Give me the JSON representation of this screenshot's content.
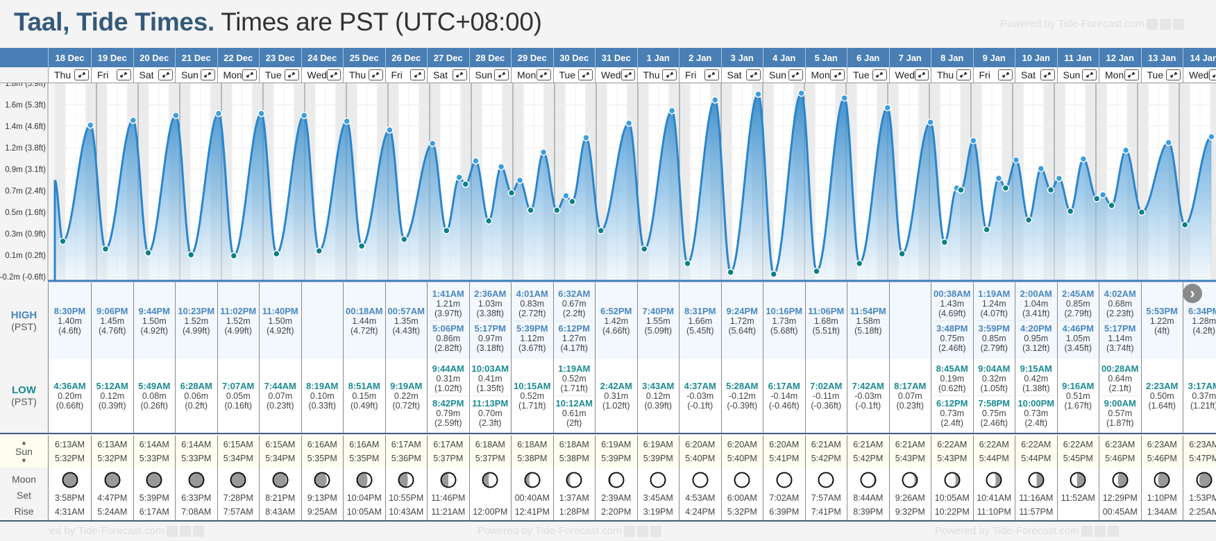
{
  "header": {
    "title_bold": "Taal, Tide Times.",
    "title_tz": "Times are PST (UTC+08:00)"
  },
  "watermark": "Powered by Tide-Forecast.com",
  "labels": {
    "high": "HIGH",
    "low": "LOW",
    "pst": "(PST)",
    "sun": "Sun",
    "moon": "Moon",
    "set": "Set",
    "rise": "Rise",
    "sun_up": "▲",
    "sun_down": "▼",
    "next": "›"
  },
  "colors": {
    "header": "#4a7fb5",
    "high": "#4a86c0",
    "low": "#1a8a93",
    "curve": "#2a85cc"
  },
  "chart_data": {
    "type": "area",
    "ylabel": "Tide height",
    "y_ticks": [
      1.833,
      1.611,
      1.389,
      1.167,
      0.944,
      0.722,
      0.5,
      0.278,
      0.056,
      -0.167
    ],
    "y_tick_labels": [
      "1.8m (5.9ft)",
      "1.6m (5.3ft)",
      "1.4m (4.6ft)",
      "1.2m (3.8ft)",
      "0.9m (3.1ft)",
      "0.7m (2.4ft)",
      "0.5m (1.6ft)",
      "0.3m (0.9ft)",
      "0.1m (0.2ft)",
      "-0.2m (-0.6ft)"
    ],
    "ylim": [
      -0.167,
      1.833
    ],
    "start_level_m": 0.83,
    "grid": true,
    "series_source": "days[].high / days[].low"
  },
  "days": [
    {
      "date": "18 Dec",
      "dow": "Thu",
      "high": [
        {
          "t": "8:30PM",
          "m": "1.40m",
          "f": "(4.6ft)"
        }
      ],
      "low": [
        {
          "t": "4:36AM",
          "m": "0.20m",
          "f": "(0.66ft)"
        }
      ],
      "sunrise": "6:13AM",
      "sunset": "5:32PM",
      "moon_set": "3:58PM",
      "moon_rise": "4:31AM",
      "moon_phase": 0.93
    },
    {
      "date": "19 Dec",
      "dow": "Fri",
      "high": [
        {
          "t": "9:06PM",
          "m": "1.45m",
          "f": "(4.76ft)"
        }
      ],
      "low": [
        {
          "t": "5:12AM",
          "m": "0.12m",
          "f": "(0.39ft)"
        }
      ],
      "sunrise": "6:13AM",
      "sunset": "5:32PM",
      "moon_set": "4:47PM",
      "moon_rise": "5:24AM",
      "moon_phase": 0.97
    },
    {
      "date": "20 Dec",
      "dow": "Sat",
      "high": [
        {
          "t": "9:44PM",
          "m": "1.50m",
          "f": "(4.92ft)"
        }
      ],
      "low": [
        {
          "t": "5:49AM",
          "m": "0.08m",
          "f": "(0.26ft)"
        }
      ],
      "sunrise": "6:14AM",
      "sunset": "5:33PM",
      "moon_set": "5:39PM",
      "moon_rise": "6:17AM",
      "moon_phase": 0.0
    },
    {
      "date": "21 Dec",
      "dow": "Sun",
      "high": [
        {
          "t": "10:23PM",
          "m": "1.52m",
          "f": "(4.99ft)"
        }
      ],
      "low": [
        {
          "t": "6:28AM",
          "m": "0.06m",
          "f": "(0.2ft)"
        }
      ],
      "sunrise": "6:14AM",
      "sunset": "5:33PM",
      "moon_set": "6:33PM",
      "moon_rise": "7:08AM",
      "moon_phase": 0.03
    },
    {
      "date": "22 Dec",
      "dow": "Mon",
      "high": [
        {
          "t": "11:02PM",
          "m": "1.52m",
          "f": "(4.99ft)"
        }
      ],
      "low": [
        {
          "t": "7:07AM",
          "m": "0.05m",
          "f": "(0.16ft)"
        }
      ],
      "sunrise": "6:15AM",
      "sunset": "5:34PM",
      "moon_set": "7:28PM",
      "moon_rise": "7:57AM",
      "moon_phase": 0.07
    },
    {
      "date": "23 Dec",
      "dow": "Tue",
      "high": [
        {
          "t": "11:40PM",
          "m": "1.50m",
          "f": "(4.92ft)"
        }
      ],
      "low": [
        {
          "t": "7:44AM",
          "m": "0.07m",
          "f": "(0.23ft)"
        }
      ],
      "sunrise": "6:15AM",
      "sunset": "5:34PM",
      "moon_set": "8:21PM",
      "moon_rise": "8:43AM",
      "moon_phase": 0.1
    },
    {
      "date": "24 Dec",
      "dow": "Wed",
      "high": [],
      "low": [
        {
          "t": "8:19AM",
          "m": "0.10m",
          "f": "(0.33ft)"
        }
      ],
      "sunrise": "6:16AM",
      "sunset": "5:35PM",
      "moon_set": "9:13PM",
      "moon_rise": "9:25AM",
      "moon_phase": 0.14
    },
    {
      "date": "25 Dec",
      "dow": "Thu",
      "high": [
        {
          "t": "00:18AM",
          "m": "1.44m",
          "f": "(4.72ft)"
        }
      ],
      "low": [
        {
          "t": "8:51AM",
          "m": "0.15m",
          "f": "(0.49ft)"
        }
      ],
      "sunrise": "6:16AM",
      "sunset": "5:35PM",
      "moon_set": "10:04PM",
      "moon_rise": "10:05AM",
      "moon_phase": 0.18
    },
    {
      "date": "26 Dec",
      "dow": "Fri",
      "high": [
        {
          "t": "00:57AM",
          "m": "1.35m",
          "f": "(4.43ft)"
        }
      ],
      "low": [
        {
          "t": "9:19AM",
          "m": "0.22m",
          "f": "(0.72ft)"
        }
      ],
      "sunrise": "6:17AM",
      "sunset": "5:36PM",
      "moon_set": "10:55PM",
      "moon_rise": "10:43AM",
      "moon_phase": 0.21
    },
    {
      "date": "27 Dec",
      "dow": "Sat",
      "high": [
        {
          "t": "1:41AM",
          "m": "1.21m",
          "f": "(3.97ft)"
        },
        {
          "t": "5:06PM",
          "m": "0.86m",
          "f": "(2.82ft)"
        }
      ],
      "low": [
        {
          "t": "9:44AM",
          "m": "0.31m",
          "f": "(1.02ft)"
        },
        {
          "t": "8:42PM",
          "m": "0.79m",
          "f": "(2.59ft)"
        }
      ],
      "sunrise": "6:17AM",
      "sunset": "5:37PM",
      "moon_set": "11:46PM",
      "moon_rise": "11:21AM",
      "moon_phase": 0.25
    },
    {
      "date": "28 Dec",
      "dow": "Sun",
      "high": [
        {
          "t": "2:36AM",
          "m": "1.03m",
          "f": "(3.38ft)"
        },
        {
          "t": "5:17PM",
          "m": "0.97m",
          "f": "(3.18ft)"
        }
      ],
      "low": [
        {
          "t": "10:03AM",
          "m": "0.41m",
          "f": "(1.35ft)"
        },
        {
          "t": "11:13PM",
          "m": "0.70m",
          "f": "(2.3ft)"
        }
      ],
      "sunrise": "6:18AM",
      "sunset": "5:37PM",
      "moon_set": "",
      "moon_rise": "12:00PM",
      "moon_phase": 0.28
    },
    {
      "date": "29 Dec",
      "dow": "Mon",
      "high": [
        {
          "t": "4:01AM",
          "m": "0.83m",
          "f": "(2.72ft)"
        },
        {
          "t": "5:39PM",
          "m": "1.12m",
          "f": "(3.67ft)"
        }
      ],
      "low": [
        {
          "t": "10:15AM",
          "m": "0.52m",
          "f": "(1.71ft)"
        }
      ],
      "sunrise": "6:18AM",
      "sunset": "5:38PM",
      "moon_set": "00:40AM",
      "moon_rise": "12:41PM",
      "moon_phase": 0.32
    },
    {
      "date": "30 Dec",
      "dow": "Tue",
      "high": [
        {
          "t": "6:32AM",
          "m": "0.67m",
          "f": "(2.2ft)"
        },
        {
          "t": "6:12PM",
          "m": "1.27m",
          "f": "(4.17ft)"
        }
      ],
      "low": [
        {
          "t": "1:19AM",
          "m": "0.52m",
          "f": "(1.71ft)"
        },
        {
          "t": "10:12AM",
          "m": "0.61m",
          "f": "(2ft)"
        }
      ],
      "sunrise": "6:18AM",
      "sunset": "5:38PM",
      "moon_set": "1:37AM",
      "moon_rise": "1:28PM",
      "moon_phase": 0.35
    },
    {
      "date": "31 Dec",
      "dow": "Wed",
      "high": [
        {
          "t": "6:52PM",
          "m": "1.42m",
          "f": "(4.66ft)"
        }
      ],
      "low": [
        {
          "t": "2:42AM",
          "m": "0.31m",
          "f": "(1.02ft)"
        }
      ],
      "sunrise": "6:19AM",
      "sunset": "5:39PM",
      "moon_set": "2:39AM",
      "moon_rise": "2:20PM",
      "moon_phase": 0.39
    },
    {
      "date": "1 Jan",
      "dow": "Thu",
      "high": [
        {
          "t": "7:40PM",
          "m": "1.55m",
          "f": "(5.09ft)"
        }
      ],
      "low": [
        {
          "t": "3:43AM",
          "m": "0.12m",
          "f": "(0.39ft)"
        }
      ],
      "sunrise": "6:19AM",
      "sunset": "5:39PM",
      "moon_set": "3:45AM",
      "moon_rise": "3:19PM",
      "moon_phase": 0.43
    },
    {
      "date": "2 Jan",
      "dow": "Fri",
      "high": [
        {
          "t": "8:31PM",
          "m": "1.66m",
          "f": "(5.45ft)"
        }
      ],
      "low": [
        {
          "t": "4:37AM",
          "m": "-0.03m",
          "f": "(-0.1ft)"
        }
      ],
      "sunrise": "6:20AM",
      "sunset": "5:40PM",
      "moon_set": "4:53AM",
      "moon_rise": "4:24PM",
      "moon_phase": 0.47
    },
    {
      "date": "3 Jan",
      "dow": "Sat",
      "high": [
        {
          "t": "9:24PM",
          "m": "1.72m",
          "f": "(5.64ft)"
        }
      ],
      "low": [
        {
          "t": "5:28AM",
          "m": "-0.12m",
          "f": "(-0.39ft)"
        }
      ],
      "sunrise": "6:20AM",
      "sunset": "5:40PM",
      "moon_set": "6:00AM",
      "moon_rise": "5:32PM",
      "moon_phase": 0.5
    },
    {
      "date": "4 Jan",
      "dow": "Sun",
      "high": [
        {
          "t": "10:16PM",
          "m": "1.73m",
          "f": "(5.68ft)"
        }
      ],
      "low": [
        {
          "t": "6:17AM",
          "m": "-0.14m",
          "f": "(-0.46ft)"
        }
      ],
      "sunrise": "6:20AM",
      "sunset": "5:41PM",
      "moon_set": "7:02AM",
      "moon_rise": "6:39PM",
      "moon_phase": 0.53
    },
    {
      "date": "5 Jan",
      "dow": "Mon",
      "high": [
        {
          "t": "11:06PM",
          "m": "1.68m",
          "f": "(5.51ft)"
        }
      ],
      "low": [
        {
          "t": "7:02AM",
          "m": "-0.11m",
          "f": "(-0.36ft)"
        }
      ],
      "sunrise": "6:21AM",
      "sunset": "5:42PM",
      "moon_set": "7:57AM",
      "moon_rise": "7:41PM",
      "moon_phase": 0.57
    },
    {
      "date": "6 Jan",
      "dow": "Tue",
      "high": [
        {
          "t": "11:54PM",
          "m": "1.58m",
          "f": "(5.18ft)"
        }
      ],
      "low": [
        {
          "t": "7:42AM",
          "m": "-0.03m",
          "f": "(-0.1ft)"
        }
      ],
      "sunrise": "6:21AM",
      "sunset": "5:42PM",
      "moon_set": "8:44AM",
      "moon_rise": "8:39PM",
      "moon_phase": 0.6
    },
    {
      "date": "7 Jan",
      "dow": "Wed",
      "high": [],
      "low": [
        {
          "t": "8:17AM",
          "m": "0.07m",
          "f": "(0.23ft)"
        }
      ],
      "sunrise": "6:21AM",
      "sunset": "5:43PM",
      "moon_set": "9:26AM",
      "moon_rise": "9:32PM",
      "moon_phase": 0.64
    },
    {
      "date": "8 Jan",
      "dow": "Thu",
      "high": [
        {
          "t": "00:38AM",
          "m": "1.43m",
          "f": "(4.69ft)"
        },
        {
          "t": "3:48PM",
          "m": "0.75m",
          "f": "(2.46ft)"
        }
      ],
      "low": [
        {
          "t": "8:45AM",
          "m": "0.19m",
          "f": "(0.62ft)"
        },
        {
          "t": "6:12PM",
          "m": "0.73m",
          "f": "(2.4ft)"
        }
      ],
      "sunrise": "6:22AM",
      "sunset": "5:43PM",
      "moon_set": "10:05AM",
      "moon_rise": "10:22PM",
      "moon_phase": 0.67
    },
    {
      "date": "9 Jan",
      "dow": "Fri",
      "high": [
        {
          "t": "1:19AM",
          "m": "1.24m",
          "f": "(4.07ft)"
        },
        {
          "t": "3:59PM",
          "m": "0.85m",
          "f": "(2.79ft)"
        }
      ],
      "low": [
        {
          "t": "9:04AM",
          "m": "0.32m",
          "f": "(1.05ft)"
        },
        {
          "t": "7:58PM",
          "m": "0.75m",
          "f": "(2.46ft)"
        }
      ],
      "sunrise": "6:22AM",
      "sunset": "5:44PM",
      "moon_set": "10:41AM",
      "moon_rise": "11:10PM",
      "moon_phase": 0.71
    },
    {
      "date": "10 Jan",
      "dow": "Sat",
      "high": [
        {
          "t": "2:00AM",
          "m": "1.04m",
          "f": "(3.41ft)"
        },
        {
          "t": "4:20PM",
          "m": "0.95m",
          "f": "(3.12ft)"
        }
      ],
      "low": [
        {
          "t": "9:15AM",
          "m": "0.42m",
          "f": "(1.38ft)"
        },
        {
          "t": "10:00PM",
          "m": "0.73m",
          "f": "(2.4ft)"
        }
      ],
      "sunrise": "6:22AM",
      "sunset": "5:44PM",
      "moon_set": "11:16AM",
      "moon_rise": "11:57PM",
      "moon_phase": 0.74
    },
    {
      "date": "11 Jan",
      "dow": "Sun",
      "high": [
        {
          "t": "2:45AM",
          "m": "0.85m",
          "f": "(2.79ft)"
        },
        {
          "t": "4:46PM",
          "m": "1.05m",
          "f": "(3.45ft)"
        }
      ],
      "low": [
        {
          "t": "9:16AM",
          "m": "0.51m",
          "f": "(1.67ft)"
        }
      ],
      "sunrise": "6:22AM",
      "sunset": "5:45PM",
      "moon_set": "11:52AM",
      "moon_rise": "",
      "moon_phase": 0.77
    },
    {
      "date": "12 Jan",
      "dow": "Mon",
      "high": [
        {
          "t": "4:02AM",
          "m": "0.68m",
          "f": "(2.23ft)"
        },
        {
          "t": "5:17PM",
          "m": "1.14m",
          "f": "(3.74ft)"
        }
      ],
      "low": [
        {
          "t": "00:28AM",
          "m": "0.64m",
          "f": "(2.1ft)"
        },
        {
          "t": "9:00AM",
          "m": "0.57m",
          "f": "(1.87ft)"
        }
      ],
      "sunrise": "6:23AM",
      "sunset": "5:46PM",
      "moon_set": "12:29PM",
      "moon_rise": "00:45AM",
      "moon_phase": 0.8
    },
    {
      "date": "13 Jan",
      "dow": "Tue",
      "high": [
        {
          "t": "5:53PM",
          "m": "1.22m",
          "f": "(4ft)"
        }
      ],
      "low": [
        {
          "t": "2:23AM",
          "m": "0.50m",
          "f": "(1.64ft)"
        }
      ],
      "sunrise": "6:23AM",
      "sunset": "5:46PM",
      "moon_set": "1:10PM",
      "moon_rise": "1:34AM",
      "moon_phase": 0.84
    },
    {
      "date": "14 Jan",
      "dow": "Wed",
      "high": [
        {
          "t": "6:34PM",
          "m": "1.28m",
          "f": "(4.2ft)"
        }
      ],
      "low": [
        {
          "t": "3:17AM",
          "m": "0.37m",
          "f": "(1.21ft)"
        }
      ],
      "sunrise": "6:23AM",
      "sunset": "5:47PM",
      "moon_set": "1:53PM",
      "moon_rise": "2:25AM",
      "moon_phase": 0.87
    }
  ]
}
